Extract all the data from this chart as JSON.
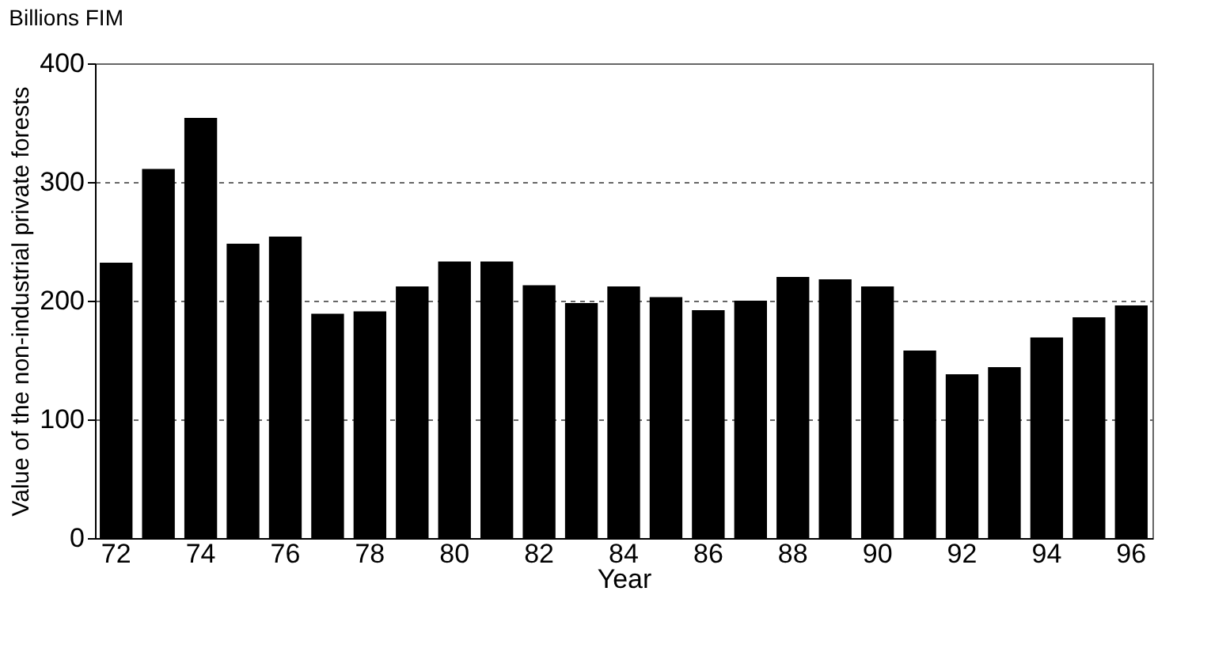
{
  "chart_data": {
    "type": "bar",
    "title": "Billions FIM",
    "xlabel": "Year",
    "ylabel": "Value of the non-industrial private forests",
    "categories": [
      "72",
      null,
      "74",
      null,
      "76",
      null,
      "78",
      null,
      "80",
      null,
      "82",
      null,
      "84",
      null,
      "86",
      null,
      "88",
      null,
      "90",
      null,
      "92",
      null,
      "94",
      null,
      "96"
    ],
    "values": [
      232,
      311,
      354,
      248,
      254,
      189,
      191,
      212,
      233,
      233,
      213,
      198,
      212,
      203,
      192,
      200,
      220,
      218,
      212,
      158,
      138,
      144,
      169,
      186,
      196
    ],
    "color": "#000000",
    "ylim": [
      0,
      400
    ],
    "yticks": [
      0,
      100,
      200,
      300,
      400
    ],
    "grid": "y"
  }
}
